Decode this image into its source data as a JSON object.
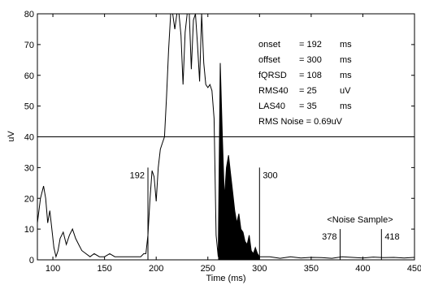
{
  "chart_data": {
    "type": "line",
    "xlabel": "Time (ms)",
    "ylabel": "uV",
    "xlim": [
      85,
      450
    ],
    "ylim": [
      0,
      80
    ],
    "xticks": [
      100,
      150,
      200,
      250,
      300,
      350,
      400,
      450
    ],
    "yticks": [
      0,
      10,
      20,
      30,
      40,
      50,
      60,
      70,
      80
    ],
    "grid": false,
    "threshold_line_y": 40,
    "series": [
      {
        "x": [
          85,
          88,
          91,
          93,
          95,
          97,
          99,
          101,
          103,
          105,
          107,
          110,
          113,
          116,
          119,
          122,
          125,
          128,
          132,
          136,
          140,
          145,
          150,
          155,
          160,
          165,
          170,
          175,
          180,
          185,
          188,
          190,
          192,
          194,
          196,
          198,
          200,
          202,
          204,
          206,
          208,
          210,
          212,
          214,
          216,
          218,
          220,
          222,
          224,
          226,
          228,
          230,
          232,
          234,
          236,
          238,
          240,
          242,
          244,
          246,
          248,
          250,
          252,
          254,
          256,
          258,
          260,
          262,
          264,
          266,
          268,
          270,
          272,
          274,
          276,
          278,
          280,
          282,
          284,
          286,
          288,
          290,
          292,
          294,
          296,
          298,
          300,
          305,
          310,
          320,
          330,
          340,
          350,
          360,
          370,
          380,
          390,
          400,
          410,
          420,
          430,
          440,
          450
        ],
        "values": [
          12,
          20,
          24,
          20,
          12,
          16,
          10,
          4,
          1,
          3,
          7,
          9,
          5,
          8,
          10,
          7,
          5,
          3,
          2,
          1,
          2,
          1,
          1,
          2,
          1,
          1,
          1,
          1,
          1,
          1,
          2,
          2,
          8,
          20,
          29,
          27,
          19,
          30,
          36,
          38,
          40,
          53,
          68,
          80,
          80,
          75,
          80,
          80,
          73,
          57,
          74,
          80,
          80,
          62,
          78,
          80,
          70,
          58,
          80,
          64,
          57,
          56,
          57,
          55,
          46,
          8,
          1,
          64,
          40,
          20,
          30,
          34,
          28,
          22,
          16,
          12,
          15,
          10,
          9,
          6,
          5,
          8,
          3,
          2,
          4,
          2,
          1,
          1,
          1,
          0.5,
          1,
          0.6,
          0.8,
          0.7,
          0.5,
          1,
          0.8,
          0.6,
          0.9,
          0.7,
          0.8,
          0.6,
          0.8
        ]
      }
    ],
    "filled_region": {
      "x_start": 260,
      "x_end": 300
    },
    "markers": [
      {
        "x": 192,
        "y_top": 30,
        "label": "192",
        "label_side": "left"
      },
      {
        "x": 300,
        "y_top": 30,
        "label": "300",
        "label_side": "right"
      },
      {
        "x": 378,
        "y_top": 10,
        "label": "378",
        "label_side": "left"
      },
      {
        "x": 418,
        "y_top": 10,
        "label": "418",
        "label_side": "right"
      }
    ],
    "noise_sample_label": "<Noise Sample>",
    "metrics": [
      {
        "name": "onset",
        "value": "= 192",
        "unit": "ms"
      },
      {
        "name": "offset",
        "value": "= 300",
        "unit": "ms"
      },
      {
        "name": "fQRSD",
        "value": "= 108",
        "unit": "ms"
      },
      {
        "name": "RMS40",
        "value": "= 25",
        "unit": "uV"
      },
      {
        "name": "LAS40",
        "value": "= 35",
        "unit": "ms"
      }
    ],
    "rms_noise_text": "RMS Noise = 0.69uV"
  }
}
